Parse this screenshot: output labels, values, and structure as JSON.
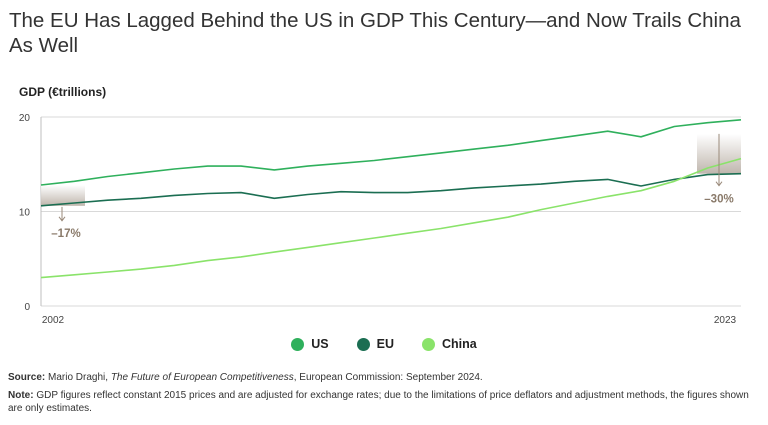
{
  "title": "The EU Has Lagged Behind the US in GDP This Century—and Now Trails China As Well",
  "chart_data": {
    "type": "line",
    "ylabel": "GDP (€trillions)",
    "ylim": [
      0,
      20
    ],
    "yticks": [
      0,
      10,
      20
    ],
    "xlim": [
      2002,
      2023
    ],
    "xtick_labels": [
      "2002",
      "2023"
    ],
    "x": [
      2002,
      2003,
      2004,
      2005,
      2006,
      2007,
      2008,
      2009,
      2010,
      2011,
      2012,
      2013,
      2014,
      2015,
      2016,
      2017,
      2018,
      2019,
      2020,
      2021,
      2022,
      2023
    ],
    "series": [
      {
        "name": "US",
        "color": "#2fb05c",
        "values": [
          12.8,
          13.2,
          13.7,
          14.1,
          14.5,
          14.8,
          14.8,
          14.4,
          14.8,
          15.1,
          15.4,
          15.8,
          16.2,
          16.6,
          17.0,
          17.5,
          18.0,
          18.5,
          17.9,
          19.0,
          19.4,
          19.7
        ]
      },
      {
        "name": "EU",
        "color": "#1b6e52",
        "values": [
          10.6,
          10.9,
          11.2,
          11.4,
          11.7,
          11.9,
          12.0,
          11.4,
          11.8,
          12.1,
          12.0,
          12.0,
          12.2,
          12.5,
          12.7,
          12.9,
          13.2,
          13.4,
          12.7,
          13.4,
          13.9,
          14.0
        ]
      },
      {
        "name": "China",
        "color": "#8ae36a",
        "values": [
          3.0,
          3.3,
          3.6,
          3.9,
          4.3,
          4.8,
          5.2,
          5.7,
          6.2,
          6.7,
          7.2,
          7.7,
          8.2,
          8.8,
          9.4,
          10.2,
          10.9,
          11.6,
          12.2,
          13.2,
          14.6,
          15.6
        ]
      }
    ],
    "annotations": [
      {
        "label": "–17%",
        "x": 2002
      },
      {
        "label": "–30%",
        "x": 2023
      }
    ]
  },
  "legend": {
    "us": "US",
    "eu": "EU",
    "china": "China"
  },
  "source": {
    "label": "Source:",
    "author": "Mario Draghi,",
    "work": "The Future of European Competitiveness",
    "rest": ", European Commission: September 2024."
  },
  "note": {
    "label": "Note:",
    "text": "GDP figures reflect constant 2015 prices and are adjusted for exchange rates; due to the limitations of price deflators and adjustment methods, the figures shown are only estimates."
  },
  "colors": {
    "us": "#2fb05c",
    "eu": "#1b6e52",
    "china": "#8ae36a",
    "grid": "#d9d9d9",
    "annotation": "#9a8a7a"
  }
}
